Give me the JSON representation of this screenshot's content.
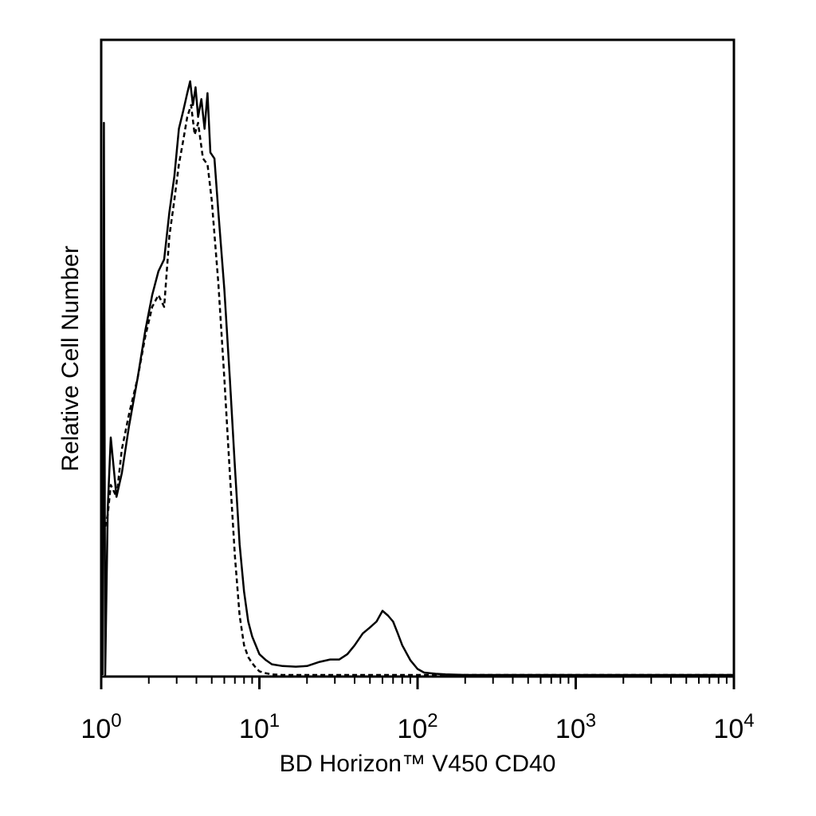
{
  "chart_data": {
    "type": "line",
    "title": "",
    "xlabel": "BD Horizon™ V450 CD40",
    "ylabel": "Relative Cell Number",
    "x_scale": "log",
    "xlim": [
      1,
      10000
    ],
    "ylim": [
      0,
      100
    ],
    "grid": false,
    "legend": "none",
    "x_tick_labels": [
      {
        "base": "10",
        "exp": "0",
        "value": 1
      },
      {
        "base": "10",
        "exp": "1",
        "value": 10
      },
      {
        "base": "10",
        "exp": "2",
        "value": 100
      },
      {
        "base": "10",
        "exp": "3",
        "value": 1000
      },
      {
        "base": "10",
        "exp": "4",
        "value": 10000
      }
    ],
    "series": [
      {
        "style": "solid",
        "x": [
          1.02,
          1.04,
          1.06,
          1.1,
          1.15,
          1.25,
          1.35,
          1.5,
          1.7,
          1.9,
          2.1,
          2.3,
          2.5,
          2.7,
          2.9,
          3.1,
          3.3,
          3.5,
          3.65,
          3.8,
          3.95,
          4.1,
          4.3,
          4.5,
          4.7,
          4.9,
          5.2,
          5.5,
          6.0,
          6.5,
          7.0,
          7.5,
          8.0,
          8.5,
          9.0,
          10,
          11,
          12,
          14,
          17,
          20,
          24,
          28,
          32,
          36,
          40,
          45,
          50,
          55,
          60,
          65,
          70,
          75,
          80,
          90,
          100,
          110,
          130,
          150,
          200,
          500,
          1000,
          5000,
          10000
        ],
        "y": [
          0,
          93,
          0,
          28,
          40,
          30,
          34,
          42,
          50,
          58,
          64,
          68,
          70,
          78,
          84,
          92,
          95,
          98,
          100,
          96,
          99,
          94,
          97,
          92,
          98,
          88,
          87,
          78,
          65,
          50,
          35,
          22,
          14,
          9,
          6.5,
          3.5,
          2.5,
          1.8,
          1.5,
          1.4,
          1.5,
          2.2,
          2.6,
          2.6,
          3.5,
          5.0,
          7.0,
          8.0,
          9.0,
          10.8,
          10.0,
          9.0,
          7.0,
          5.0,
          2.5,
          1.0,
          0.4,
          0.2,
          0.1,
          0,
          0,
          0,
          0,
          0
        ]
      },
      {
        "style": "dashed",
        "x": [
          1.06,
          1.1,
          1.15,
          1.25,
          1.35,
          1.5,
          1.7,
          1.9,
          2.1,
          2.3,
          2.5,
          2.7,
          2.9,
          3.1,
          3.3,
          3.5,
          3.7,
          3.9,
          4.1,
          4.4,
          4.7,
          5.0,
          5.5,
          6.0,
          6.5,
          7.0,
          7.5,
          8.0,
          8.5,
          9.0,
          9.5,
          10,
          11,
          12,
          14,
          17,
          20,
          50,
          200,
          10000
        ],
        "y": [
          25,
          27,
          32,
          30,
          38,
          44,
          50,
          57,
          62,
          64,
          62,
          74,
          80,
          86,
          90,
          94,
          96,
          91,
          93,
          87,
          86,
          80,
          66,
          50,
          34,
          20,
          10,
          5,
          3,
          2,
          1.2,
          0.6,
          0.3,
          0.1,
          0,
          0,
          0,
          0,
          0,
          0
        ]
      }
    ]
  }
}
